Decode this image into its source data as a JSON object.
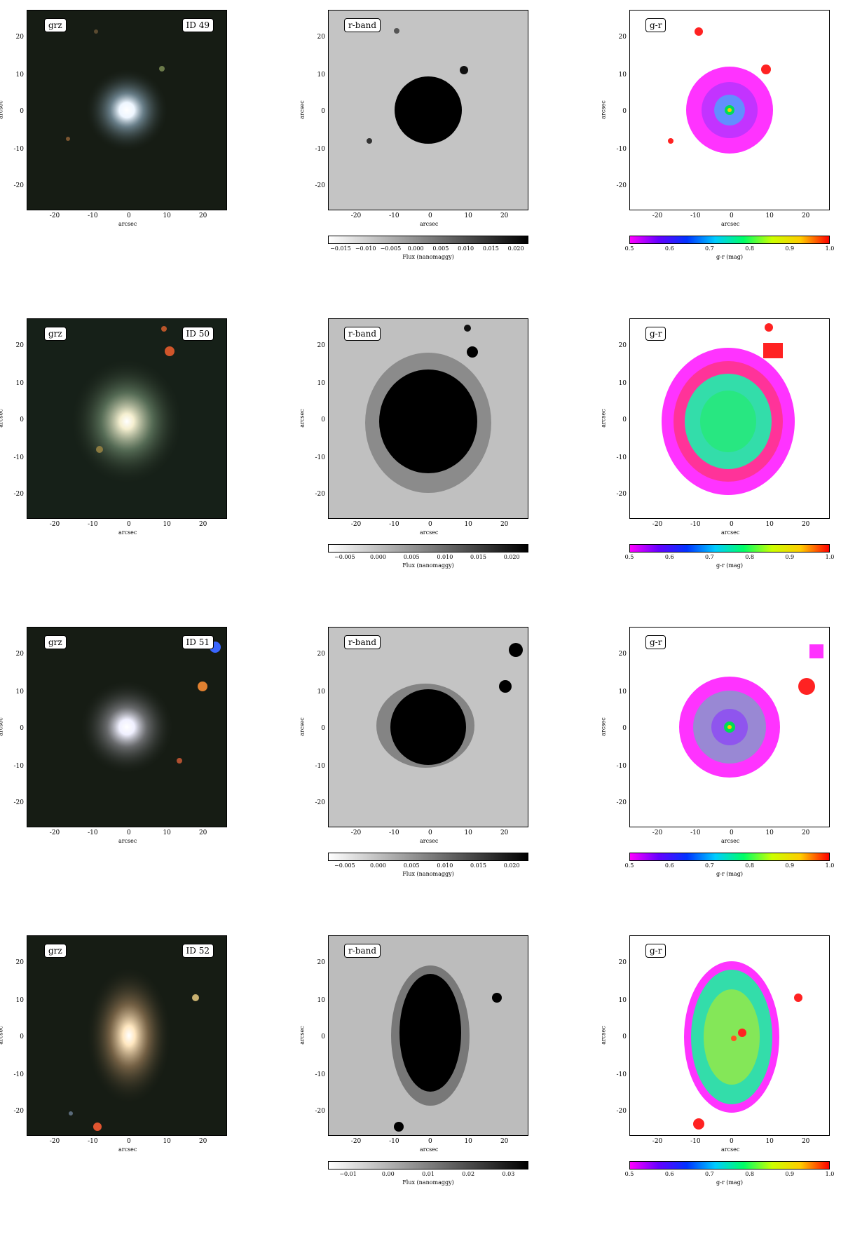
{
  "axis_label": "arcsec",
  "y_ticks": [
    "20",
    "10",
    "0",
    "-10",
    "-20"
  ],
  "x_ticks": [
    "-20",
    "-10",
    "0",
    "10",
    "20"
  ],
  "tags": {
    "grz": "grz",
    "rband": "r-band",
    "gr": "g-r"
  },
  "rband_cbar_label": "Flux (nanomaggy)",
  "gr_cbar_label": "g-r (mag)",
  "gr_cbar_ticks": [
    "0.5",
    "0.6",
    "0.7",
    "0.8",
    "0.9",
    "1.0"
  ],
  "rows": [
    {
      "id": "ID 49",
      "rband_ticks": [
        "−0.015",
        "−0.010",
        "−0.005",
        "0.000",
        "0.005",
        "0.010",
        "0.015",
        "0.020"
      ]
    },
    {
      "id": "ID 50",
      "rband_ticks": [
        "−0.005",
        "0.000",
        "0.005",
        "0.010",
        "0.015",
        "0.020"
      ]
    },
    {
      "id": "ID 51",
      "rband_ticks": [
        "−0.005",
        "0.000",
        "0.005",
        "0.010",
        "0.015",
        "0.020"
      ]
    },
    {
      "id": "ID 52",
      "rband_ticks": [
        "−0.01",
        "0.00",
        "0.01",
        "0.02",
        "0.03"
      ]
    }
  ]
}
